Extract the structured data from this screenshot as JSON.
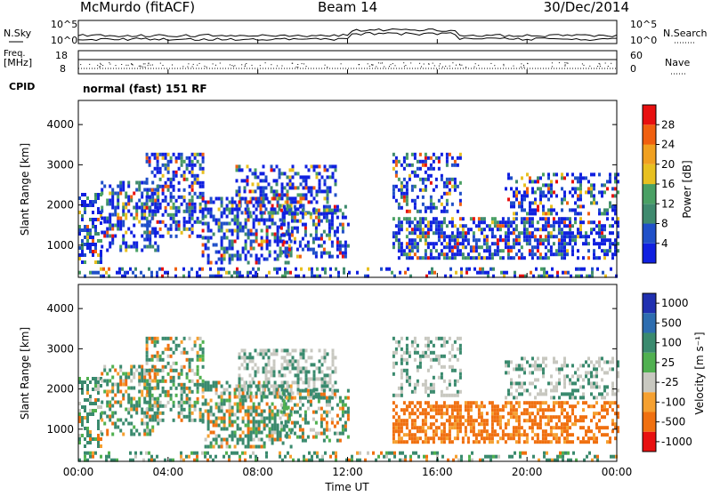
{
  "header": {
    "station": "McMurdo (fitACF)",
    "beam": "Beam 14",
    "date": "30/Dec/2014"
  },
  "aux": {
    "nsky_label": "N.Sky",
    "nsearch_label": "N.Search",
    "noise_ticks": [
      "10^5",
      "10^0"
    ],
    "freq_label_line1": "Freq.",
    "freq_label_line2": "[MHz]",
    "freq_ticks": [
      "18",
      "8"
    ],
    "nave_label": "Nave",
    "nave_ticks": [
      "60",
      "0"
    ],
    "cpid_label": "CPID",
    "cpid_text": "normal (fast) 151 RF"
  },
  "colors": {
    "power_scale": [
      "#1020e0",
      "#2050c8",
      "#3f8a6e",
      "#4aa064",
      "#e8c020",
      "#f0a020",
      "#f06010",
      "#e81010"
    ],
    "velocity_scale": [
      "#2030b0",
      "#2d6db0",
      "#3a8a6e",
      "#50b050",
      "#c8c8c0",
      "#f5a030",
      "#f07010",
      "#e81010"
    ]
  },
  "chart_data": [
    {
      "type": "heatmap",
      "panel": "power",
      "ylabel": "Slant Range [km]",
      "xlabel": "",
      "x_ticks": [
        "00:00",
        "04:00",
        "08:00",
        "12:00",
        "16:00",
        "20:00",
        "00:00"
      ],
      "y_ticks": [
        1000,
        2000,
        3000,
        4000
      ],
      "ylim": [
        200,
        4600
      ],
      "colorbar_label": "Power [dB]",
      "colorbar_ticks": [
        4,
        8,
        12,
        16,
        20,
        24,
        28
      ],
      "colorbar_range": [
        0,
        32
      ]
    },
    {
      "type": "heatmap",
      "panel": "velocity",
      "ylabel": "Slant Range [km]",
      "xlabel": "Time UT",
      "x_ticks": [
        "00:00",
        "04:00",
        "08:00",
        "12:00",
        "16:00",
        "20:00",
        "00:00"
      ],
      "y_ticks": [
        1000,
        2000,
        3000,
        4000
      ],
      "ylim": [
        200,
        4600
      ],
      "colorbar_label": "Velocity [m s⁻¹]",
      "colorbar_ticks": [
        "1000",
        "500",
        "100",
        "25",
        "-25",
        "-100",
        "-500",
        "-1000"
      ]
    }
  ]
}
